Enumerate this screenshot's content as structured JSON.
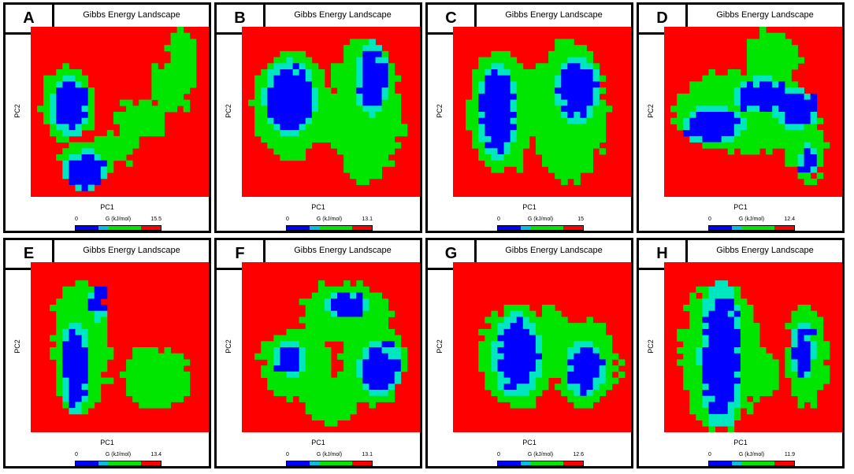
{
  "colors": {
    "high": "#ff0000",
    "mid": "#00e600",
    "low": "#0000ff",
    "edge": "#00e6c0"
  },
  "colorbar_segments": [
    "#0000ff",
    "#00c0e6",
    "#00e600",
    "#ff0000"
  ],
  "chart_data": [
    {
      "type": "heatmap",
      "panel": "A",
      "title": "Gibbs Energy Landscape",
      "xlabel": "PC1",
      "ylabel": "PC2",
      "colorbar": {
        "label": "G (kJ/mol)",
        "min": "0",
        "max": "15.5"
      },
      "basins": [
        {
          "cx": 0.22,
          "cy": 0.47,
          "rx": 0.09,
          "ry": 0.14
        },
        {
          "cx": 0.31,
          "cy": 0.85,
          "rx": 0.1,
          "ry": 0.1
        }
      ],
      "green": [
        {
          "cx": 0.2,
          "cy": 0.45,
          "rx": 0.14,
          "ry": 0.22
        },
        {
          "cx": 0.3,
          "cy": 0.82,
          "rx": 0.14,
          "ry": 0.12
        },
        {
          "cx": 0.46,
          "cy": 0.72,
          "rx": 0.14,
          "ry": 0.1
        },
        {
          "cx": 0.62,
          "cy": 0.55,
          "rx": 0.14,
          "ry": 0.1
        },
        {
          "cx": 0.78,
          "cy": 0.35,
          "rx": 0.1,
          "ry": 0.16
        },
        {
          "cx": 0.86,
          "cy": 0.18,
          "rx": 0.08,
          "ry": 0.16
        }
      ]
    },
    {
      "type": "heatmap",
      "panel": "B",
      "title": "Gibbs Energy Landscape",
      "xlabel": "PC1",
      "ylabel": "PC2",
      "colorbar": {
        "label": "G (kJ/mol)",
        "min": "0",
        "max": "13.1"
      },
      "basins": [
        {
          "cx": 0.27,
          "cy": 0.42,
          "rx": 0.12,
          "ry": 0.18
        },
        {
          "cx": 0.73,
          "cy": 0.31,
          "rx": 0.07,
          "ry": 0.18
        }
      ],
      "green": [
        {
          "cx": 0.27,
          "cy": 0.45,
          "rx": 0.22,
          "ry": 0.32
        },
        {
          "cx": 0.7,
          "cy": 0.5,
          "rx": 0.2,
          "ry": 0.42
        },
        {
          "cx": 0.5,
          "cy": 0.55,
          "rx": 0.12,
          "ry": 0.14
        }
      ]
    },
    {
      "type": "heatmap",
      "panel": "C",
      "title": "Gibbs Energy Landscape",
      "xlabel": "PC1",
      "ylabel": "PC2",
      "colorbar": {
        "label": "G (kJ/mol)",
        "min": "0",
        "max": "15"
      },
      "basins": [
        {
          "cx": 0.25,
          "cy": 0.5,
          "rx": 0.09,
          "ry": 0.24
        },
        {
          "cx": 0.7,
          "cy": 0.37,
          "rx": 0.1,
          "ry": 0.16
        }
      ],
      "green": [
        {
          "cx": 0.27,
          "cy": 0.5,
          "rx": 0.19,
          "ry": 0.36
        },
        {
          "cx": 0.65,
          "cy": 0.5,
          "rx": 0.21,
          "ry": 0.42
        },
        {
          "cx": 0.45,
          "cy": 0.4,
          "rx": 0.12,
          "ry": 0.14
        }
      ]
    },
    {
      "type": "heatmap",
      "panel": "D",
      "title": "Gibbs Energy Landscape",
      "xlabel": "PC1",
      "ylabel": "PC2",
      "colorbar": {
        "label": "G (kJ/mol)",
        "min": "0",
        "max": "12.4"
      },
      "basins": [
        {
          "cx": 0.28,
          "cy": 0.58,
          "rx": 0.14,
          "ry": 0.09
        },
        {
          "cx": 0.55,
          "cy": 0.4,
          "rx": 0.14,
          "ry": 0.08
        },
        {
          "cx": 0.74,
          "cy": 0.48,
          "rx": 0.1,
          "ry": 0.1
        },
        {
          "cx": 0.81,
          "cy": 0.78,
          "rx": 0.04,
          "ry": 0.07
        }
      ],
      "green": [
        {
          "cx": 0.45,
          "cy": 0.5,
          "rx": 0.4,
          "ry": 0.24
        },
        {
          "cx": 0.6,
          "cy": 0.2,
          "rx": 0.15,
          "ry": 0.18
        },
        {
          "cx": 0.8,
          "cy": 0.7,
          "rx": 0.1,
          "ry": 0.22
        }
      ]
    },
    {
      "type": "heatmap",
      "panel": "E",
      "title": "Gibbs Energy Landscape",
      "xlabel": "PC1",
      "ylabel": "PC2",
      "colorbar": {
        "label": "G (kJ/mol)",
        "min": "0",
        "max": "13.4"
      },
      "basins": [
        {
          "cx": 0.25,
          "cy": 0.62,
          "rx": 0.07,
          "ry": 0.22
        },
        {
          "cx": 0.38,
          "cy": 0.24,
          "rx": 0.04,
          "ry": 0.08
        }
      ],
      "green": [
        {
          "cx": 0.28,
          "cy": 0.5,
          "rx": 0.16,
          "ry": 0.4
        },
        {
          "cx": 0.7,
          "cy": 0.68,
          "rx": 0.2,
          "ry": 0.18
        }
      ]
    },
    {
      "type": "heatmap",
      "panel": "F",
      "title": "Gibbs Energy Landscape",
      "xlabel": "PC1",
      "ylabel": "PC2",
      "colorbar": {
        "label": "G (kJ/mol)",
        "min": "0",
        "max": "13.1"
      },
      "basins": [
        {
          "cx": 0.27,
          "cy": 0.57,
          "rx": 0.07,
          "ry": 0.08
        },
        {
          "cx": 0.6,
          "cy": 0.25,
          "rx": 0.1,
          "ry": 0.06
        },
        {
          "cx": 0.78,
          "cy": 0.62,
          "rx": 0.1,
          "ry": 0.13
        }
      ],
      "green": [
        {
          "cx": 0.3,
          "cy": 0.6,
          "rx": 0.2,
          "ry": 0.2
        },
        {
          "cx": 0.58,
          "cy": 0.3,
          "rx": 0.25,
          "ry": 0.18
        },
        {
          "cx": 0.75,
          "cy": 0.6,
          "rx": 0.18,
          "ry": 0.25
        },
        {
          "cx": 0.5,
          "cy": 0.8,
          "rx": 0.15,
          "ry": 0.15
        }
      ]
    },
    {
      "type": "heatmap",
      "panel": "G",
      "title": "Gibbs Energy Landscape",
      "xlabel": "PC1",
      "ylabel": "PC2",
      "colorbar": {
        "label": "G (kJ/mol)",
        "min": "0",
        "max": "12.6"
      },
      "basins": [
        {
          "cx": 0.36,
          "cy": 0.55,
          "rx": 0.11,
          "ry": 0.2
        },
        {
          "cx": 0.74,
          "cy": 0.63,
          "rx": 0.09,
          "ry": 0.13
        }
      ],
      "green": [
        {
          "cx": 0.36,
          "cy": 0.55,
          "rx": 0.21,
          "ry": 0.3
        },
        {
          "cx": 0.75,
          "cy": 0.6,
          "rx": 0.18,
          "ry": 0.26
        },
        {
          "cx": 0.55,
          "cy": 0.4,
          "rx": 0.1,
          "ry": 0.14
        }
      ]
    },
    {
      "type": "heatmap",
      "panel": "H",
      "title": "Gibbs Energy Landscape",
      "xlabel": "PC1",
      "ylabel": "PC2",
      "colorbar": {
        "label": "G (kJ/mol)",
        "min": "0",
        "max": "11.9"
      },
      "basins": [
        {
          "cx": 0.32,
          "cy": 0.55,
          "rx": 0.1,
          "ry": 0.36
        },
        {
          "cx": 0.78,
          "cy": 0.52,
          "rx": 0.05,
          "ry": 0.14
        }
      ],
      "green": [
        {
          "cx": 0.31,
          "cy": 0.55,
          "rx": 0.22,
          "ry": 0.44
        },
        {
          "cx": 0.8,
          "cy": 0.55,
          "rx": 0.12,
          "ry": 0.3
        },
        {
          "cx": 0.55,
          "cy": 0.65,
          "rx": 0.1,
          "ry": 0.12
        }
      ]
    }
  ]
}
